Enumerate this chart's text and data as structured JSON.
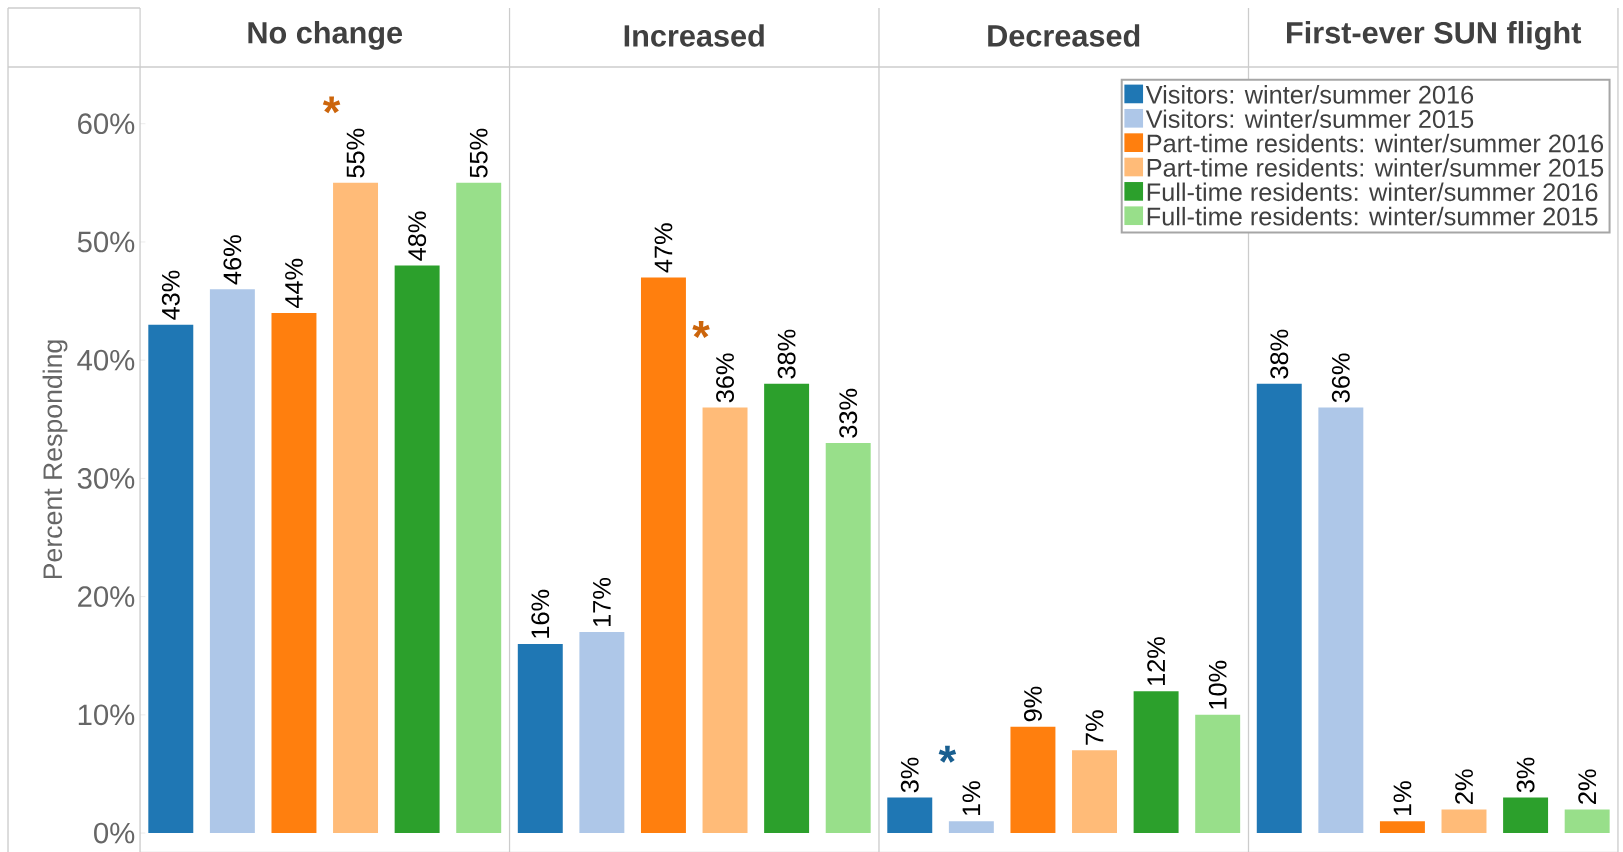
{
  "chart_data": {
    "type": "bar",
    "ylabel": "Percent Responding",
    "categories": [
      "No change",
      "Increased",
      "Decreased",
      "First-ever SUN flight"
    ],
    "series": [
      {
        "name": "Visitors: winter/summer 2016",
        "color": "#1f77b4",
        "values": [
          43,
          16,
          3,
          38
        ],
        "value_labels": [
          "43%",
          "16%",
          "3%",
          "38%"
        ]
      },
      {
        "name": "Visitors: winter/summer 2015",
        "color": "#aec7e8",
        "values": [
          46,
          17,
          1,
          36
        ],
        "value_labels": [
          "46%",
          "17%",
          "1%",
          "36%"
        ]
      },
      {
        "name": "Part-time residents: winter/summer 2016",
        "color": "#ff7f0e",
        "values": [
          44,
          47,
          9,
          1
        ],
        "value_labels": [
          "44%",
          "47%",
          "9%",
          "1%"
        ]
      },
      {
        "name": "Part-time residents: winter/summer 2015",
        "color": "#ffbb78",
        "values": [
          55,
          36,
          7,
          2
        ],
        "value_labels": [
          "55%",
          "36%",
          "7%",
          "2%"
        ]
      },
      {
        "name": "Full-time residents: winter/summer 2016",
        "color": "#2ca02c",
        "values": [
          48,
          38,
          12,
          3
        ],
        "value_labels": [
          "48%",
          "38%",
          "12%",
          "3%"
        ]
      },
      {
        "name": "Full-time residents: winter/summer 2015",
        "color": "#98df8a",
        "values": [
          55,
          33,
          10,
          2
        ],
        "value_labels": [
          "55%",
          "33%",
          "10%",
          "2%"
        ]
      }
    ],
    "ylim": [
      -1.6,
      64.8
    ],
    "yticks": [
      {
        "value": 0,
        "label": "0%"
      },
      {
        "value": 10,
        "label": "10%"
      },
      {
        "value": 20,
        "label": "20%"
      },
      {
        "value": 30,
        "label": "30%"
      },
      {
        "value": 40,
        "label": "40%"
      },
      {
        "value": 50,
        "label": "50%"
      },
      {
        "value": 60,
        "label": "60%"
      }
    ],
    "grid": false,
    "legend": "top right",
    "annotations": [
      "*",
      "*",
      "*"
    ]
  }
}
